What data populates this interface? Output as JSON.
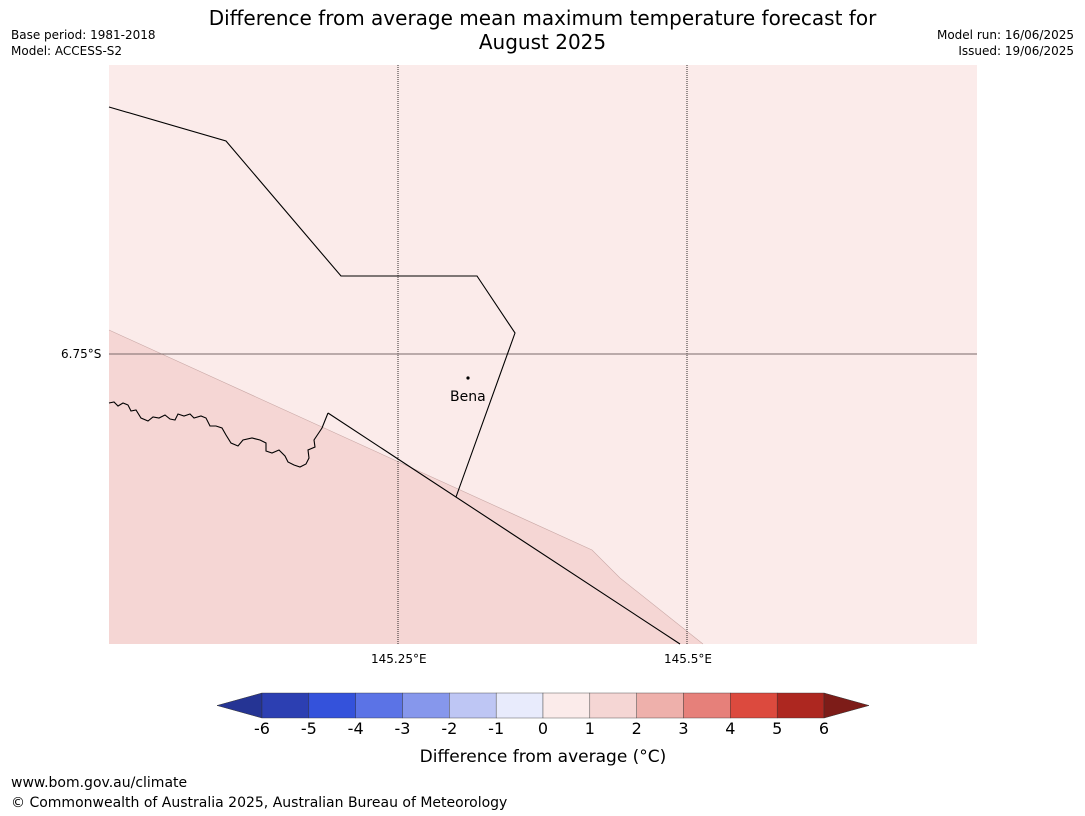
{
  "title": "Difference from average mean maximum temperature forecast for\nAugust 2025",
  "meta_left": {
    "base_period": "Base period: 1981-2018",
    "model": "Model: ACCESS-S2"
  },
  "meta_right": {
    "model_run": "Model run: 16/06/2025",
    "issued": "Issued: 19/06/2025"
  },
  "map": {
    "place_label": "Bena",
    "lon_ticks": [
      "145.25°E",
      "145.5°E"
    ],
    "lat_ticks": [
      "6.75°S"
    ],
    "colors": {
      "background_anomaly_0_1": "#fbebea",
      "anomaly_1_2": "#f5d6d4",
      "boundary": "#000000",
      "gridline": "#000000"
    }
  },
  "colorbar": {
    "tick_labels": [
      "-6",
      "-5",
      "-4",
      "-3",
      "-2",
      "-1",
      "0",
      "1",
      "2",
      "3",
      "4",
      "5",
      "6"
    ],
    "bin_colors": [
      "#253494",
      "#2c3fb2",
      "#3452db",
      "#5b73e6",
      "#8697ec",
      "#bec6f4",
      "#e8ebfc",
      "#fbebea",
      "#f5d6d4",
      "#eeb0ab",
      "#e6807a",
      "#dc4a3e",
      "#ad2720",
      "#7d1c18"
    ],
    "label": "Difference from average (°C)"
  },
  "footer": {
    "url": "www.bom.gov.au/climate",
    "copyright": "© Commonwealth of Australia 2025, Australian Bureau of Meteorology"
  }
}
